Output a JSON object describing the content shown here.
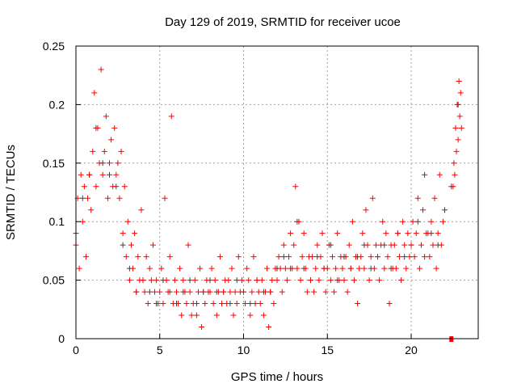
{
  "chart_data": {
    "type": "scatter",
    "title": "Day 129 of 2019, SRMTID for receiver ucoe",
    "xlabel": "GPS time / hours",
    "ylabel": "SRMTID / TECUs",
    "xlim": [
      0,
      24
    ],
    "ylim": [
      0,
      0.25
    ],
    "xticks": [
      "0",
      "5",
      "10",
      "15",
      "20"
    ],
    "yticks": [
      "0",
      "0.05",
      "0.1",
      "0.15",
      "0.2",
      "0.25"
    ],
    "grid": true,
    "legend": "none",
    "colors": {
      "primary": "#ff0000",
      "secondary": "#404040"
    },
    "series": [
      {
        "name": "secondary",
        "color": "#404040",
        "x_start": 0,
        "x_step": 0.4,
        "y": [
          0.09,
          0.12,
          0.14,
          0.18,
          0.15,
          0.14,
          0.13,
          0.08,
          0.06,
          0.04,
          0.05,
          0.04,
          0.03,
          0.05,
          0.04,
          0.03,
          0.04,
          0.05,
          0.03,
          0.04,
          0.05,
          0.04,
          0.04,
          0.03,
          0.05,
          0.04,
          0.03,
          0.05,
          0.04,
          0.04,
          0.06,
          0.07,
          0.06,
          0.1,
          0.06,
          0.05,
          0.07,
          0.06,
          0.08,
          0.05,
          0.07,
          0.06,
          0.07,
          0.08,
          0.06,
          0.07,
          0.08,
          0.06,
          0.09,
          0.07,
          0.08,
          0.1,
          0.14,
          0.09,
          0.08,
          0.11,
          0.13,
          0.2
        ]
      },
      {
        "name": "primary",
        "color": "#ff0000",
        "x_start": 0,
        "x_step": 0.1,
        "y": [
          0.08,
          0.12,
          0.06,
          0.14,
          0.1,
          0.13,
          0.07,
          0.12,
          0.14,
          0.11,
          0.16,
          0.21,
          0.13,
          0.18,
          0.15,
          0.23,
          0.14,
          0.16,
          0.19,
          0.12,
          0.15,
          0.17,
          0.13,
          0.18,
          0.14,
          0.15,
          0.12,
          0.16,
          0.09,
          0.13,
          0.07,
          0.1,
          0.05,
          0.08,
          0.06,
          0.09,
          0.04,
          0.07,
          0.05,
          0.11,
          0.05,
          0.04,
          0.07,
          0.03,
          0.06,
          0.05,
          0.08,
          0.04,
          0.05,
          0.03,
          0.04,
          0.06,
          0.03,
          0.12,
          0.05,
          0.04,
          0.07,
          0.19,
          0.03,
          0.05,
          0.04,
          0.03,
          0.06,
          0.02,
          0.05,
          0.04,
          0.03,
          0.08,
          0.04,
          0.02,
          0.03,
          0.05,
          0.02,
          0.04,
          0.06,
          0.01,
          0.04,
          0.03,
          0.05,
          0.04,
          0.04,
          0.06,
          0.03,
          0.05,
          0.02,
          0.04,
          0.07,
          0.03,
          0.04,
          0.05,
          0.03,
          0.05,
          0.04,
          0.06,
          0.02,
          0.04,
          0.03,
          0.07,
          0.04,
          0.05,
          0.04,
          0.03,
          0.06,
          0.05,
          0.02,
          0.04,
          0.07,
          0.03,
          0.05,
          0.04,
          0.03,
          0.05,
          0.02,
          0.04,
          0.06,
          0.01,
          0.04,
          0.05,
          0.03,
          0.06,
          0.05,
          0.07,
          0.06,
          0.04,
          0.08,
          0.06,
          0.05,
          0.07,
          0.09,
          0.06,
          0.08,
          0.13,
          0.06,
          0.1,
          0.05,
          0.07,
          0.09,
          0.06,
          0.04,
          0.07,
          0.05,
          0.07,
          0.04,
          0.06,
          0.08,
          0.05,
          0.07,
          0.09,
          0.06,
          0.04,
          0.06,
          0.08,
          0.05,
          0.07,
          0.04,
          0.06,
          0.09,
          0.05,
          0.07,
          0.06,
          0.05,
          0.07,
          0.04,
          0.08,
          0.06,
          0.1,
          0.05,
          0.07,
          0.03,
          0.06,
          0.07,
          0.09,
          0.06,
          0.11,
          0.08,
          0.05,
          0.07,
          0.12,
          0.06,
          0.08,
          0.07,
          0.05,
          0.08,
          0.1,
          0.06,
          0.09,
          0.07,
          0.03,
          0.08,
          0.06,
          0.08,
          0.06,
          0.09,
          0.07,
          0.05,
          0.1,
          0.08,
          0.06,
          0.09,
          0.07,
          0.08,
          0.1,
          0.07,
          0.09,
          0.12,
          0.06,
          0.08,
          0.11,
          0.07,
          0.09,
          0.09,
          0.07,
          0.1,
          0.08,
          0.12,
          0.06,
          0.09,
          0.14,
          0.08,
          0.1
        ]
      },
      {
        "name": "primary-tail",
        "color": "#ff0000",
        "x_start": 22.5,
        "x_step": 0.05,
        "y": [
          0.13,
          0.15,
          0.14,
          0.18,
          0.16,
          0.2,
          0.17,
          0.22,
          0.19,
          0.21,
          0.18
        ]
      }
    ],
    "marker_points": [
      {
        "x": 22.4,
        "y": 0,
        "color": "#ff0000",
        "shape": "square"
      }
    ]
  }
}
